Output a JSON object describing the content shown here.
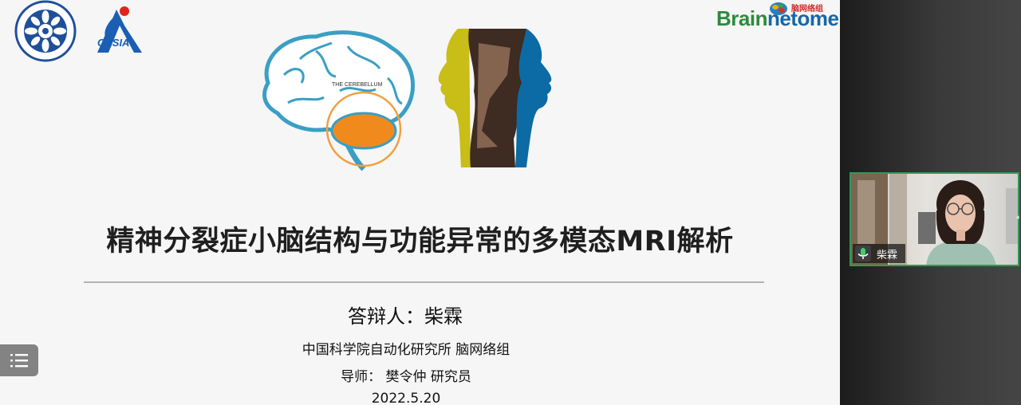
{
  "slide": {
    "title": "精神分裂症小脑结构与功能异常的多模态MRI解析",
    "presenter": "答辩人：柴霖",
    "institute": "中国科学院自动化研究所 脑网络组",
    "advisor": "导师： 樊令仲 研究员",
    "date": "2022.5.20",
    "brain_label": "THE CEREBELLUM",
    "logos": {
      "cas": "cas-seal-logo",
      "casia": "CASIA",
      "brainnetome_part1": "Brain",
      "brainnetome_part2": "netome",
      "brainnetome_cn": "脑网络组"
    }
  },
  "controls": {
    "menu_icon": "list-icon"
  },
  "participant": {
    "name": "柴霖",
    "mic_icon": "microphone-icon",
    "border_color": "#2f9a55"
  },
  "colors": {
    "slide_background": "#f6f6f6",
    "brain_outline": "#3a9fc4",
    "cerebellum": "#f08a1c",
    "face_yellow": "#c9bd17",
    "face_blue": "#0c6aa4"
  }
}
